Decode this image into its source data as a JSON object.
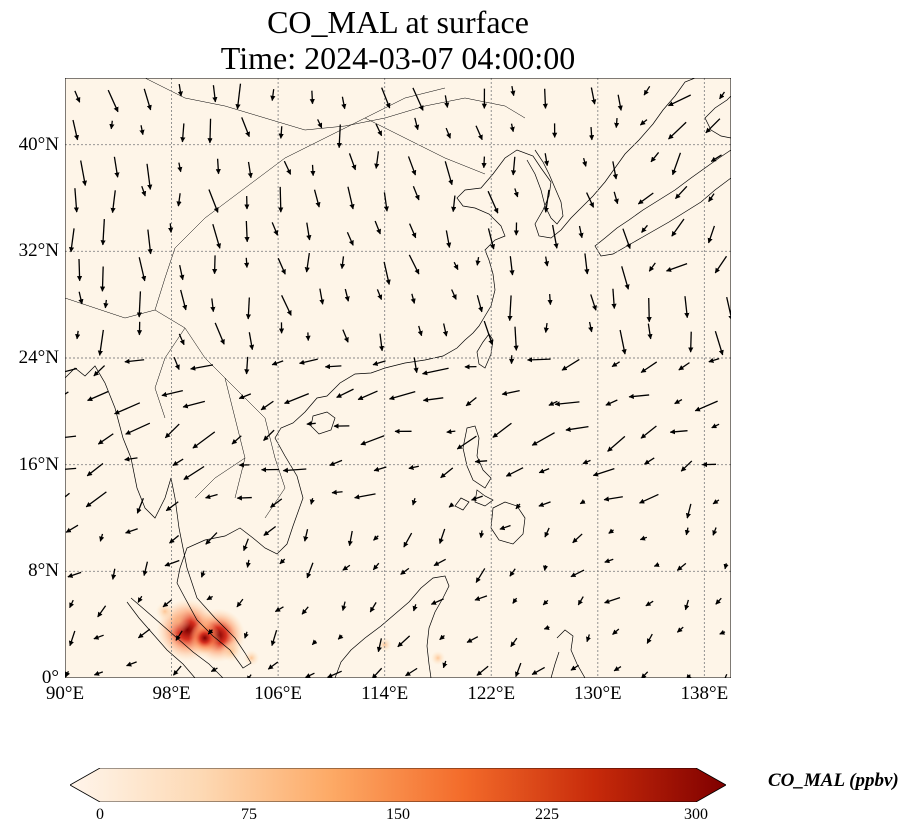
{
  "title": {
    "line1": "CO_MAL at surface",
    "line2": "Time: 2024-03-07 04:00:00"
  },
  "map": {
    "lon_range": [
      90,
      140
    ],
    "lat_range": [
      0,
      45
    ],
    "lon_ticks": [
      {
        "value": 90,
        "label": "90°E"
      },
      {
        "value": 98,
        "label": "98°E"
      },
      {
        "value": 106,
        "label": "106°E"
      },
      {
        "value": 114,
        "label": "114°E"
      },
      {
        "value": 122,
        "label": "122°E"
      },
      {
        "value": 130,
        "label": "130°E"
      },
      {
        "value": 138,
        "label": "138°E"
      }
    ],
    "lat_ticks": [
      {
        "value": 0,
        "label": "0°"
      },
      {
        "value": 8,
        "label": "8°N"
      },
      {
        "value": 16,
        "label": "16°N"
      },
      {
        "value": 24,
        "label": "24°N"
      },
      {
        "value": 32,
        "label": "32°N"
      },
      {
        "value": 40,
        "label": "40°N"
      }
    ],
    "background_color": "#fef5e8",
    "hotspots": [
      {
        "lon": 99.2,
        "lat": 3.6,
        "value": 300
      },
      {
        "lon": 101.5,
        "lat": 3.2,
        "value": 250
      },
      {
        "lon": 100.5,
        "lat": 3.0,
        "value": 120
      },
      {
        "lon": 98.5,
        "lat": 4.3,
        "value": 80
      },
      {
        "lon": 97.5,
        "lat": 5.0,
        "value": 40
      },
      {
        "lon": 102.5,
        "lat": 2.0,
        "value": 60
      },
      {
        "lon": 104.0,
        "lat": 1.5,
        "value": 25
      },
      {
        "lon": 114.0,
        "lat": 2.5,
        "value": 15
      },
      {
        "lon": 118.0,
        "lat": 1.5,
        "value": 15
      }
    ]
  },
  "colorbar": {
    "label": "CO_MAL (ppbv)",
    "min": 0,
    "max": 300,
    "ticks": [
      "0",
      "75",
      "150",
      "225",
      "300"
    ],
    "tick_values": [
      0,
      75,
      150,
      225,
      300
    ],
    "colors": [
      "#fff5eb",
      "#fdd9b4",
      "#fda965",
      "#f36b2a",
      "#c72a0a",
      "#7f0000"
    ]
  }
}
